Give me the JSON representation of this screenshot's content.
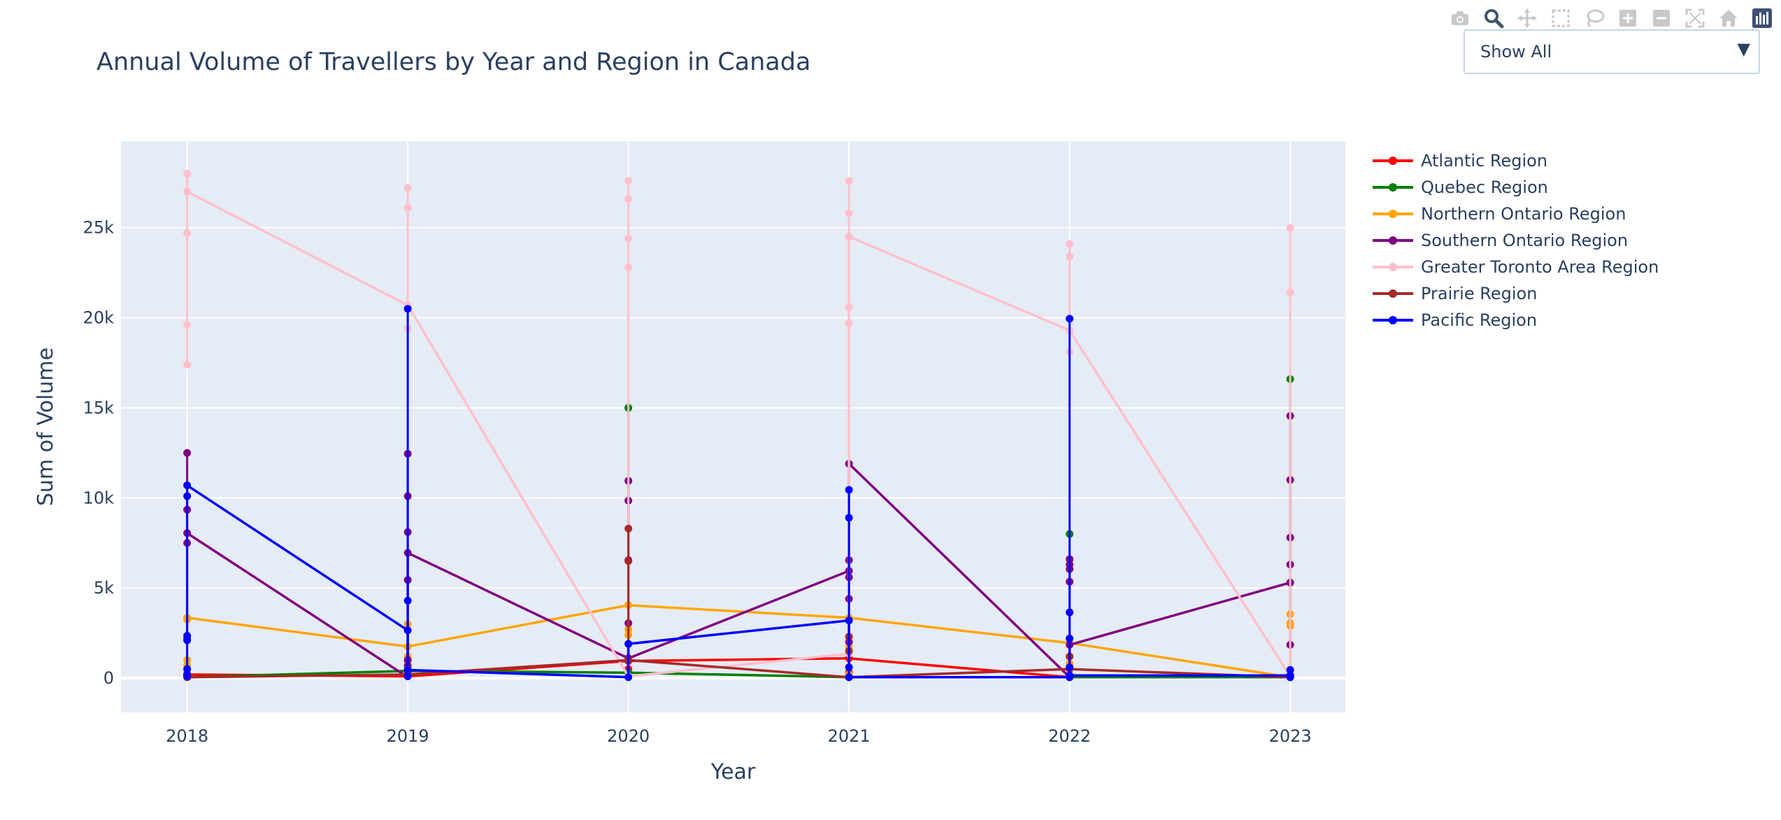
{
  "chart_data": {
    "type": "line",
    "title": "Annual Volume of Travellers by Year and Region in Canada",
    "xlabel": "Year",
    "ylabel": "Sum of Volume",
    "x": [
      2018,
      2019,
      2020,
      2021,
      2022,
      2023
    ],
    "x_tick_labels": [
      "2018",
      "2019",
      "2020",
      "2021",
      "2022",
      "2023"
    ],
    "y_ticks": [
      0,
      5000,
      10000,
      15000,
      20000,
      25000
    ],
    "y_tick_labels": [
      "0",
      "5k",
      "10k",
      "15k",
      "20k",
      "25k"
    ],
    "xlim": [
      2017.7,
      2023.25
    ],
    "ylim": [
      -1900,
      29800
    ],
    "grid": true,
    "legend_position": "right",
    "series": [
      {
        "name": "Atlantic Region",
        "color": "#ff0000",
        "line": [
          [
            2018,
            200
          ],
          [
            2019,
            100
          ],
          [
            2020,
            950
          ],
          [
            2021,
            1100
          ],
          [
            2022,
            50
          ],
          [
            2023,
            50
          ]
        ],
        "points": [
          [
            2018,
            200
          ],
          [
            2018,
            100
          ],
          [
            2019,
            100
          ],
          [
            2019,
            300
          ],
          [
            2020,
            950
          ],
          [
            2020,
            500
          ],
          [
            2021,
            1100
          ],
          [
            2021,
            300
          ],
          [
            2022,
            50
          ],
          [
            2022,
            150
          ],
          [
            2023,
            50
          ],
          [
            2023,
            150
          ]
        ]
      },
      {
        "name": "Quebec Region",
        "color": "#008000",
        "line": [
          [
            2018,
            50
          ],
          [
            2019,
            400
          ],
          [
            2020,
            300
          ],
          [
            2021,
            50
          ],
          [
            2022,
            50
          ],
          [
            2023,
            50
          ]
        ],
        "points": [
          [
            2018,
            50
          ],
          [
            2019,
            400
          ],
          [
            2020,
            300
          ],
          [
            2020,
            15000
          ],
          [
            2021,
            50
          ],
          [
            2022,
            50
          ],
          [
            2022,
            8000
          ],
          [
            2023,
            50
          ],
          [
            2023,
            16600
          ]
        ]
      },
      {
        "name": "Northern Ontario Region",
        "color": "#ffa500",
        "line": [
          [
            2018,
            3350
          ],
          [
            2019,
            1750
          ],
          [
            2020,
            4050
          ],
          [
            2021,
            3350
          ],
          [
            2022,
            1950
          ],
          [
            2023,
            50
          ]
        ],
        "points": [
          [
            2018,
            3350
          ],
          [
            2018,
            3250
          ],
          [
            2018,
            1000
          ],
          [
            2018,
            700
          ],
          [
            2018,
            300
          ],
          [
            2019,
            3000
          ],
          [
            2019,
            1750
          ],
          [
            2019,
            1200
          ],
          [
            2019,
            100
          ],
          [
            2020,
            4050
          ],
          [
            2020,
            2700
          ],
          [
            2020,
            2400
          ],
          [
            2021,
            3350
          ],
          [
            2021,
            2300
          ],
          [
            2021,
            1700
          ],
          [
            2021,
            200
          ],
          [
            2022,
            1950
          ],
          [
            2022,
            1200
          ],
          [
            2022,
            800
          ],
          [
            2023,
            3550
          ],
          [
            2023,
            3050
          ],
          [
            2023,
            2900
          ],
          [
            2023,
            200
          ],
          [
            2023,
            50
          ]
        ]
      },
      {
        "name": "Southern Ontario Region",
        "color": "#800080",
        "line": [
          [
            2018,
            8050
          ],
          [
            2019,
            50
          ],
          [
            2019,
            6950
          ],
          [
            2020,
            1100
          ],
          [
            2020,
            1100
          ],
          [
            2021,
            5950
          ],
          [
            2021,
            11900
          ],
          [
            2022,
            50
          ],
          [
            2022,
            1850
          ],
          [
            2023,
            5300
          ]
        ],
        "points": [
          [
            2018,
            12500
          ],
          [
            2018,
            9350
          ],
          [
            2018,
            8050
          ],
          [
            2018,
            7500
          ],
          [
            2018,
            2200
          ],
          [
            2019,
            12450
          ],
          [
            2019,
            10100
          ],
          [
            2019,
            8100
          ],
          [
            2019,
            6950
          ],
          [
            2019,
            5450
          ],
          [
            2019,
            1000
          ],
          [
            2019,
            700
          ],
          [
            2020,
            10950
          ],
          [
            2020,
            9850
          ],
          [
            2020,
            6550
          ],
          [
            2020,
            3050
          ],
          [
            2020,
            1100
          ],
          [
            2021,
            11900
          ],
          [
            2021,
            6550
          ],
          [
            2021,
            5950
          ],
          [
            2021,
            5600
          ],
          [
            2021,
            4400
          ],
          [
            2021,
            2000
          ],
          [
            2022,
            6600
          ],
          [
            2022,
            6300
          ],
          [
            2022,
            6050
          ],
          [
            2022,
            5350
          ],
          [
            2022,
            1850
          ],
          [
            2023,
            14550
          ],
          [
            2023,
            11000
          ],
          [
            2023,
            7800
          ],
          [
            2023,
            6300
          ],
          [
            2023,
            5300
          ],
          [
            2023,
            1850
          ]
        ]
      },
      {
        "name": "Greater Toronto Area Region",
        "color": "#ffc0cb",
        "line": [
          [
            2018,
            27000
          ],
          [
            2019,
            20700
          ],
          [
            2020,
            100
          ],
          [
            2021,
            1350
          ],
          [
            2021,
            24500
          ],
          [
            2022,
            19300
          ],
          [
            2023,
            100
          ]
        ],
        "points": [
          [
            2018,
            28000
          ],
          [
            2018,
            27000
          ],
          [
            2018,
            24700
          ],
          [
            2018,
            19600
          ],
          [
            2018,
            17400
          ],
          [
            2019,
            27200
          ],
          [
            2019,
            26100
          ],
          [
            2019,
            20700
          ],
          [
            2019,
            19400
          ],
          [
            2020,
            27600
          ],
          [
            2020,
            26600
          ],
          [
            2020,
            24400
          ],
          [
            2020,
            22800
          ],
          [
            2020,
            100
          ],
          [
            2021,
            27600
          ],
          [
            2021,
            25800
          ],
          [
            2021,
            24500
          ],
          [
            2021,
            20600
          ],
          [
            2021,
            19700
          ],
          [
            2021,
            1350
          ],
          [
            2022,
            24100
          ],
          [
            2022,
            23400
          ],
          [
            2022,
            19300
          ],
          [
            2022,
            18100
          ],
          [
            2023,
            25000
          ],
          [
            2023,
            21400
          ],
          [
            2023,
            100
          ]
        ]
      },
      {
        "name": "Prairie Region",
        "color": "#a52a2a",
        "line": [
          [
            2018,
            50
          ],
          [
            2019,
            200
          ],
          [
            2020,
            1000
          ],
          [
            2021,
            50
          ],
          [
            2022,
            500
          ],
          [
            2023,
            50
          ]
        ],
        "points": [
          [
            2018,
            50
          ],
          [
            2018,
            150
          ],
          [
            2019,
            200
          ],
          [
            2019,
            500
          ],
          [
            2020,
            8300
          ],
          [
            2020,
            6500
          ],
          [
            2020,
            1000
          ],
          [
            2021,
            50
          ],
          [
            2021,
            2300
          ],
          [
            2021,
            1500
          ],
          [
            2022,
            500
          ],
          [
            2022,
            1200
          ],
          [
            2023,
            50
          ]
        ]
      },
      {
        "name": "Pacific Region",
        "color": "#0000ff",
        "line": [
          [
            2018,
            10700
          ],
          [
            2019,
            2650
          ],
          [
            2019,
            450
          ],
          [
            2020,
            50
          ],
          [
            2020,
            1900
          ],
          [
            2021,
            3200
          ],
          [
            2021,
            50
          ],
          [
            2022,
            50
          ],
          [
            2022,
            150
          ],
          [
            2023,
            150
          ]
        ],
        "points": [
          [
            2018,
            10700
          ],
          [
            2018,
            10100
          ],
          [
            2018,
            2350
          ],
          [
            2018,
            2100
          ],
          [
            2018,
            500
          ],
          [
            2018,
            200
          ],
          [
            2018,
            100
          ],
          [
            2019,
            20500
          ],
          [
            2019,
            4300
          ],
          [
            2019,
            2650
          ],
          [
            2019,
            450
          ],
          [
            2019,
            100
          ],
          [
            2020,
            1900
          ],
          [
            2020,
            50
          ],
          [
            2021,
            10450
          ],
          [
            2021,
            8900
          ],
          [
            2021,
            3200
          ],
          [
            2021,
            600
          ],
          [
            2021,
            50
          ],
          [
            2022,
            19950
          ],
          [
            2022,
            3650
          ],
          [
            2022,
            2200
          ],
          [
            2022,
            600
          ],
          [
            2022,
            150
          ],
          [
            2022,
            50
          ],
          [
            2023,
            450
          ],
          [
            2023,
            150
          ],
          [
            2023,
            50
          ]
        ]
      }
    ]
  },
  "dropdown": {
    "selected": "Show All",
    "arrow": "▼"
  },
  "modebar": [
    "camera-icon",
    "zoom-icon",
    "pan-icon",
    "box-select-icon",
    "lasso-select-icon",
    "zoom-in-icon",
    "zoom-out-icon",
    "autoscale-icon",
    "reset-axes-icon",
    "plotly-logo-icon"
  ]
}
